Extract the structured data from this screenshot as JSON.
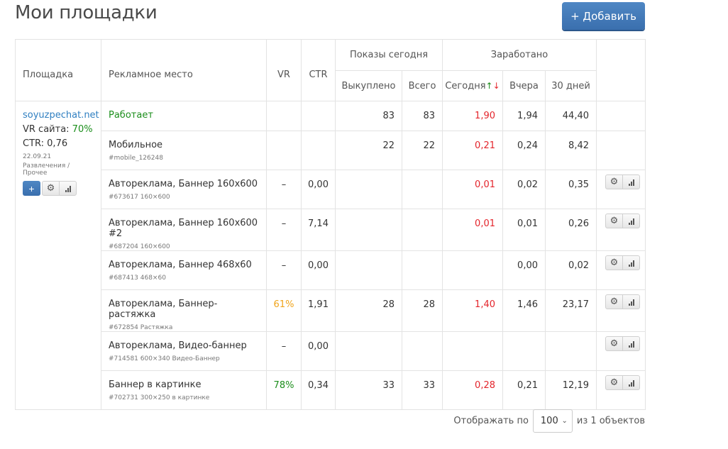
{
  "page": {
    "title": "Мои площадки",
    "add_button": "+ Добавить"
  },
  "columns": {
    "site": "Площадка",
    "place": "Рекламное место",
    "vr": "VR",
    "ctr": "CTR",
    "shows_today": "Показы сегодня",
    "earned": "Заработано",
    "bought": "Выкуплено",
    "total": "Всего",
    "today": "Сегодня",
    "sort_up": "↑",
    "sort_down": "↓",
    "yesterday": "Вчера",
    "days30": "30 дней"
  },
  "site": {
    "name": "soyuzpechat.net",
    "vr_label": "VR сайта: ",
    "vr_value": "70%",
    "ctr_text": "CTR: 0,76",
    "date": "22.09.21",
    "category": "Развлечения / Прочее",
    "status": "Работает",
    "bought": "83",
    "total": "83",
    "today": "1,90",
    "yesterday": "1,94",
    "days30": "44,40"
  },
  "rows": [
    {
      "name": "Мобильное",
      "sub": "#mobile_126248",
      "vr": "",
      "ctr": "",
      "bought": "22",
      "total": "22",
      "today": "0,21",
      "yesterday": "0,24",
      "days30": "8,42",
      "actions": false
    },
    {
      "name": "Автореклама, Баннер 160x600",
      "sub": "#673617 160×600",
      "vr": "–",
      "ctr": "0,00",
      "bought": "",
      "total": "",
      "today": "0,01",
      "yesterday": "0,02",
      "days30": "0,35",
      "actions": true
    },
    {
      "name": "Автореклама, Баннер 160x600 #2",
      "sub": "#687204 160×600",
      "vr": "–",
      "ctr": "7,14",
      "bought": "",
      "total": "",
      "today": "0,01",
      "yesterday": "0,01",
      "days30": "0,26",
      "actions": true
    },
    {
      "name": "Автореклама, Баннер 468x60",
      "sub": "#687413 468×60",
      "vr": "–",
      "ctr": "0,00",
      "bought": "",
      "total": "",
      "today": "",
      "yesterday": "0,00",
      "days30": "0,02",
      "actions": true
    },
    {
      "name": "Автореклама, Баннер-растяжка",
      "sub": "#672854 Растяжка",
      "vr": "61%",
      "ctr": "1,91",
      "bought": "28",
      "total": "28",
      "today": "1,40",
      "yesterday": "1,46",
      "days30": "23,17",
      "actions": true
    },
    {
      "name": "Автореклама, Видео-баннер",
      "sub": "#714581 600×340 Видео-Баннер",
      "vr": "–",
      "ctr": "0,00",
      "bought": "",
      "total": "",
      "today": "",
      "yesterday": "",
      "days30": "",
      "actions": true
    },
    {
      "name": "Баннер в картинке",
      "sub": "#702731 300×250 в картинке",
      "vr": "78%",
      "ctr": "0,34",
      "bought": "33",
      "total": "33",
      "today": "0,28",
      "yesterday": "0,21",
      "days30": "12,19",
      "actions": true
    }
  ],
  "colors": {
    "positive": "#1b8e1b",
    "negative": "#e4252c",
    "warning": "#f0a41b",
    "link": "#2f7fc1",
    "brand_button": "#3a6fae"
  },
  "footer": {
    "show_label": "Отображать по",
    "per_page": "100",
    "of_label": "из 1 объектов"
  }
}
